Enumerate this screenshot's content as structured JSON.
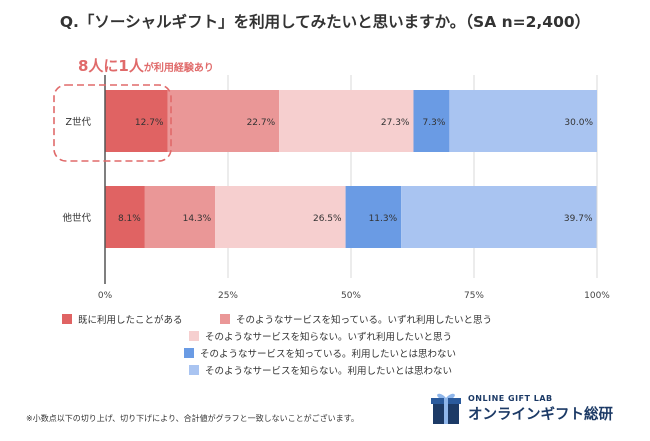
{
  "title": "Q.「ソーシャルギフト」を利用してみたいと思いますか。（SA n=2,400）",
  "callout": {
    "main": "8人に1人",
    "sub": "が利用経験あり"
  },
  "chart_data": {
    "type": "bar",
    "orientation": "horizontal-stacked-percent",
    "categories": [
      "Z世代",
      "他世代"
    ],
    "series": [
      {
        "name": "既に利用したことがある",
        "color": "#e06363",
        "values": [
          12.7,
          8.1
        ]
      },
      {
        "name": "そのようなサービスを知っている。いずれ利用したいと思う",
        "color": "#ea9797",
        "values": [
          22.7,
          14.3
        ]
      },
      {
        "name": "そのようなサービスを知らない。いずれ利用したいと思う",
        "color": "#f6cfcf",
        "values": [
          27.3,
          26.5
        ]
      },
      {
        "name": "そのようなサービスを知っている。利用したいとは思わない",
        "color": "#6a9be4",
        "values": [
          7.3,
          11.3
        ]
      },
      {
        "name": "そのようなサービスを知らない。利用したいとは思わない",
        "color": "#a9c4f1",
        "values": [
          30.0,
          39.7
        ]
      }
    ],
    "data_labels": [
      [
        "12.7%",
        "22.7%",
        "27.3%",
        "7.3%",
        "30.0%"
      ],
      [
        "8.1%",
        "14.3%",
        "26.5%",
        "11.3%",
        "39.7%"
      ]
    ],
    "xlim": [
      0,
      100
    ],
    "x_ticks": [
      "0%",
      "25%",
      "50%",
      "75%",
      "100%"
    ],
    "grid": true,
    "legend_position": "bottom"
  },
  "footnote": "※小数点以下の切り上げ、切り下げにより、合計値がグラフと一致しないことがございます。",
  "logo": {
    "small": "ONLINE GIFT LAB",
    "big": "オンラインギフト総研"
  }
}
